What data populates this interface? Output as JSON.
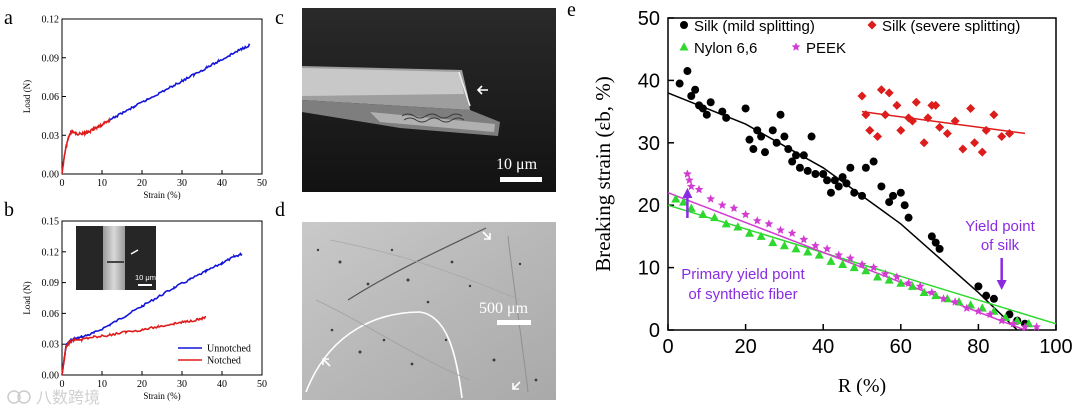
{
  "panels": {
    "a": "a",
    "b": "b",
    "c": "c",
    "d": "d",
    "e": "e"
  },
  "images": {
    "c_scale": "10 μm",
    "d_scale": "500 μm",
    "b_inset_scale": "10 μm"
  },
  "watermark": "八数跨境",
  "colors": {
    "blue": "#1414d8",
    "red": "#dd1c1c",
    "black": "#000000",
    "green": "#2ed82e",
    "magenta": "#d23cd2",
    "purple": "#8a2be2"
  },
  "chart_data": [
    {
      "id": "a",
      "type": "line",
      "xlabel": "Strain (%)",
      "ylabel": "Load (N)",
      "xlim": [
        0,
        50
      ],
      "ylim": [
        0,
        0.12
      ],
      "xticks": [
        "0",
        "10",
        "20",
        "30",
        "40",
        "50"
      ],
      "yticks": [
        "0.00",
        "0.03",
        "0.06",
        "0.09",
        "0.12"
      ],
      "series": [
        {
          "color": "red",
          "x": [
            0,
            0.5,
            1,
            1.5,
            2,
            2.5,
            3,
            4,
            5,
            6,
            7,
            8,
            9,
            10,
            11,
            12
          ],
          "y": [
            0,
            0.012,
            0.021,
            0.027,
            0.031,
            0.033,
            0.032,
            0.031,
            0.031,
            0.032,
            0.033,
            0.035,
            0.036,
            0.038,
            0.04,
            0.042
          ]
        },
        {
          "color": "blue",
          "x": [
            12,
            15,
            18,
            21,
            24,
            27,
            30,
            33,
            36,
            39,
            42,
            45,
            47
          ],
          "y": [
            0.042,
            0.047,
            0.052,
            0.057,
            0.062,
            0.067,
            0.072,
            0.077,
            0.082,
            0.087,
            0.092,
            0.097,
            0.1
          ]
        }
      ]
    },
    {
      "id": "b",
      "type": "line",
      "xlabel": "Strain (%)",
      "ylabel": "Load (N)",
      "xlim": [
        0,
        50
      ],
      "ylim": [
        0,
        0.15
      ],
      "xticks": [
        "0",
        "10",
        "20",
        "30",
        "40",
        "50"
      ],
      "yticks": [
        "0.00",
        "0.03",
        "0.06",
        "0.09",
        "0.12",
        "0.15"
      ],
      "legend": [
        "Unnotched",
        "Notched"
      ],
      "series": [
        {
          "name": "Unnotched",
          "color": "blue",
          "x": [
            0,
            1,
            2,
            3,
            5,
            8,
            12,
            16,
            20,
            24,
            28,
            32,
            36,
            40,
            43,
            45
          ],
          "y": [
            0,
            0.028,
            0.033,
            0.035,
            0.037,
            0.041,
            0.049,
            0.058,
            0.067,
            0.076,
            0.085,
            0.093,
            0.101,
            0.109,
            0.115,
            0.118
          ]
        },
        {
          "name": "Notched",
          "color": "red",
          "x": [
            0,
            1,
            2,
            3,
            5,
            8,
            12,
            16,
            20,
            24,
            28,
            31,
            34,
            36
          ],
          "y": [
            0,
            0.027,
            0.032,
            0.034,
            0.035,
            0.037,
            0.039,
            0.042,
            0.044,
            0.047,
            0.05,
            0.052,
            0.054,
            0.056
          ]
        }
      ]
    },
    {
      "id": "e",
      "type": "scatter",
      "xlabel": "R (%)",
      "ylabel": "Breaking strain (εb, %)",
      "xlim": [
        0,
        100
      ],
      "ylim": [
        0,
        50
      ],
      "xticks": [
        "0",
        "20",
        "40",
        "60",
        "80",
        "100"
      ],
      "yticks": [
        "0",
        "10",
        "20",
        "30",
        "40",
        "50"
      ],
      "legend": [
        "Silk (mild splitting)",
        "Silk (severe splitting)",
        "Nylon 6,6",
        "PEEK"
      ],
      "annotations": [
        "Yield point",
        "of silk",
        "Primary yield point",
        "of synthetic fiber"
      ],
      "series": [
        {
          "name": "Silk (mild splitting)",
          "color": "black",
          "marker": "circle",
          "x": [
            3,
            5,
            6,
            7,
            8,
            9,
            10,
            11,
            14,
            15,
            20,
            21,
            22,
            23,
            24,
            25,
            27,
            28,
            29,
            30,
            31,
            32,
            33,
            34,
            35,
            36,
            37,
            38,
            40,
            41,
            42,
            43,
            44,
            45,
            46,
            47,
            48,
            50,
            51,
            53,
            55,
            57,
            58,
            60,
            61,
            62,
            68,
            69,
            70,
            80,
            82,
            84,
            88,
            90,
            92
          ],
          "y": [
            39.5,
            41.5,
            37.5,
            38.5,
            36,
            35.5,
            34.5,
            36.5,
            35,
            34,
            35.5,
            30.5,
            29,
            32,
            31,
            28.5,
            32,
            30,
            34.5,
            31,
            29,
            27,
            28,
            26,
            28,
            25.5,
            31,
            25,
            25,
            24,
            22,
            24,
            23,
            24.5,
            23.5,
            26,
            22,
            21.5,
            26,
            27,
            23,
            20.5,
            21.5,
            22,
            20,
            18,
            15,
            14,
            13,
            7,
            5.5,
            5,
            2.5,
            1.5,
            1
          ]
        },
        {
          "name": "Silk (severe splitting)",
          "color": "red",
          "marker": "diamond",
          "x": [
            50,
            51,
            52,
            54,
            55,
            56,
            57,
            59,
            60,
            62,
            63,
            64,
            66,
            67,
            68,
            69,
            70,
            72,
            74,
            76,
            78,
            79,
            81,
            82,
            84,
            86,
            88
          ],
          "y": [
            37.5,
            34.5,
            32,
            31,
            38.5,
            34.5,
            38,
            36,
            32,
            34,
            33.5,
            36.5,
            30,
            34,
            36,
            36,
            32.5,
            31.5,
            33.5,
            29,
            35.5,
            30,
            28.5,
            32,
            34.5,
            31,
            31.5
          ]
        },
        {
          "name": "Nylon 6,6",
          "color": "green",
          "marker": "triangle",
          "x": [
            2,
            4,
            6,
            9,
            12,
            15,
            18,
            21,
            24,
            27,
            30,
            33,
            36,
            39,
            42,
            45,
            48,
            51,
            54,
            57,
            60,
            63,
            66,
            69,
            72,
            75,
            78,
            81,
            84,
            87,
            90,
            93
          ],
          "y": [
            21,
            20.5,
            19.5,
            18.5,
            18,
            17,
            16.5,
            15.5,
            15,
            14,
            13.5,
            13,
            12.5,
            12,
            11,
            10.5,
            10,
            9.5,
            8.5,
            8,
            7.5,
            7,
            6,
            5.5,
            5,
            4.5,
            4,
            3.5,
            3,
            2,
            1.5,
            1
          ]
        },
        {
          "name": "PEEK",
          "color": "magenta",
          "marker": "star",
          "x": [
            5,
            5.5,
            6,
            8,
            11,
            14,
            17,
            20,
            23,
            26,
            29,
            32,
            35,
            38,
            41,
            44,
            47,
            50,
            53,
            56,
            59,
            62,
            65,
            68,
            71,
            74,
            77,
            80,
            83,
            86,
            89,
            92,
            95
          ],
          "y": [
            25,
            24,
            23,
            22.5,
            21,
            20,
            19.5,
            18.5,
            17.5,
            17,
            16,
            15.5,
            14.5,
            13.5,
            13,
            12,
            11.5,
            10.5,
            10,
            9,
            8.5,
            7.5,
            7,
            6,
            5,
            4.5,
            3.5,
            3,
            2.5,
            1.5,
            1,
            0.5,
            0.5
          ]
        }
      ],
      "fits": [
        {
          "color": "black",
          "x": [
            0,
            20,
            40,
            60,
            80,
            90
          ],
          "y": [
            38,
            33,
            26,
            17,
            6,
            0
          ]
        },
        {
          "color": "red",
          "x": [
            50,
            92
          ],
          "y": [
            35,
            31.5
          ]
        },
        {
          "color": "green",
          "x": [
            0,
            100
          ],
          "y": [
            20,
            1
          ]
        },
        {
          "color": "magenta",
          "x": [
            0,
            92
          ],
          "y": [
            22,
            0
          ]
        }
      ]
    }
  ]
}
